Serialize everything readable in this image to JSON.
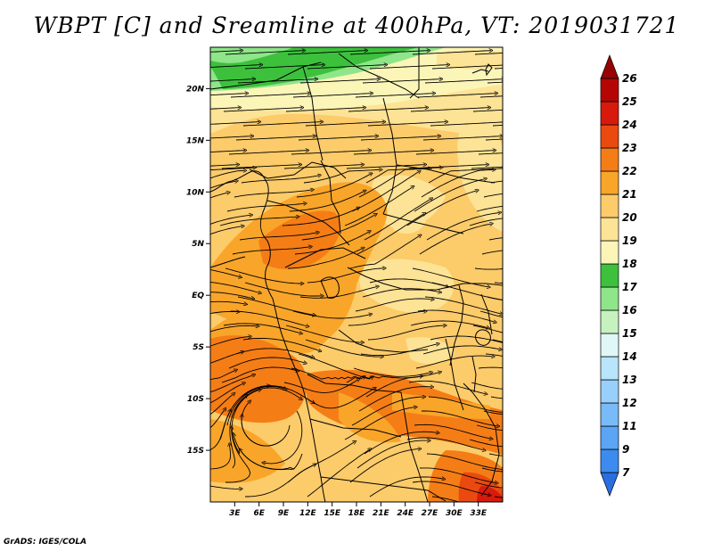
{
  "title": "WBPT [C] and Sreamline at 400hPa, VT: 2019031721",
  "credit": "GrADS: IGES/COLA",
  "map": {
    "lon_range": [
      0,
      36
    ],
    "lat_range": [
      -20,
      24
    ],
    "lat_ticks": [
      {
        "value": 20,
        "label": "20N"
      },
      {
        "value": 15,
        "label": "15N"
      },
      {
        "value": 10,
        "label": "10N"
      },
      {
        "value": 5,
        "label": "5N"
      },
      {
        "value": 0,
        "label": "EQ"
      },
      {
        "value": -5,
        "label": "5S"
      },
      {
        "value": -10,
        "label": "10S"
      },
      {
        "value": -15,
        "label": "15S"
      }
    ],
    "lon_ticks": [
      {
        "value": 3,
        "label": "3E"
      },
      {
        "value": 6,
        "label": "6E"
      },
      {
        "value": 9,
        "label": "9E"
      },
      {
        "value": 12,
        "label": "12E"
      },
      {
        "value": 15,
        "label": "15E"
      },
      {
        "value": 18,
        "label": "18E"
      },
      {
        "value": 21,
        "label": "21E"
      },
      {
        "value": 24,
        "label": "24E"
      },
      {
        "value": 27,
        "label": "27E"
      },
      {
        "value": 30,
        "label": "30E"
      },
      {
        "value": 33,
        "label": "33E"
      }
    ]
  },
  "colorbar": {
    "labels": [
      "7",
      "9",
      "11",
      "12",
      "13",
      "14",
      "15",
      "16",
      "17",
      "18",
      "19",
      "20",
      "21",
      "22",
      "23",
      "24",
      "25",
      "26"
    ],
    "colors": [
      "#2a6fe0",
      "#3c8cf0",
      "#5aa5f5",
      "#78bbf8",
      "#98d0fb",
      "#b8e4fc",
      "#e0f7f8",
      "#c6f2c0",
      "#8fe58a",
      "#3dc13d",
      "#fbf5b8",
      "#fde395",
      "#fccb6a",
      "#f9a52a",
      "#f57d16",
      "#ea4a10",
      "#d81a0c",
      "#b50606",
      "#960303"
    ]
  }
}
